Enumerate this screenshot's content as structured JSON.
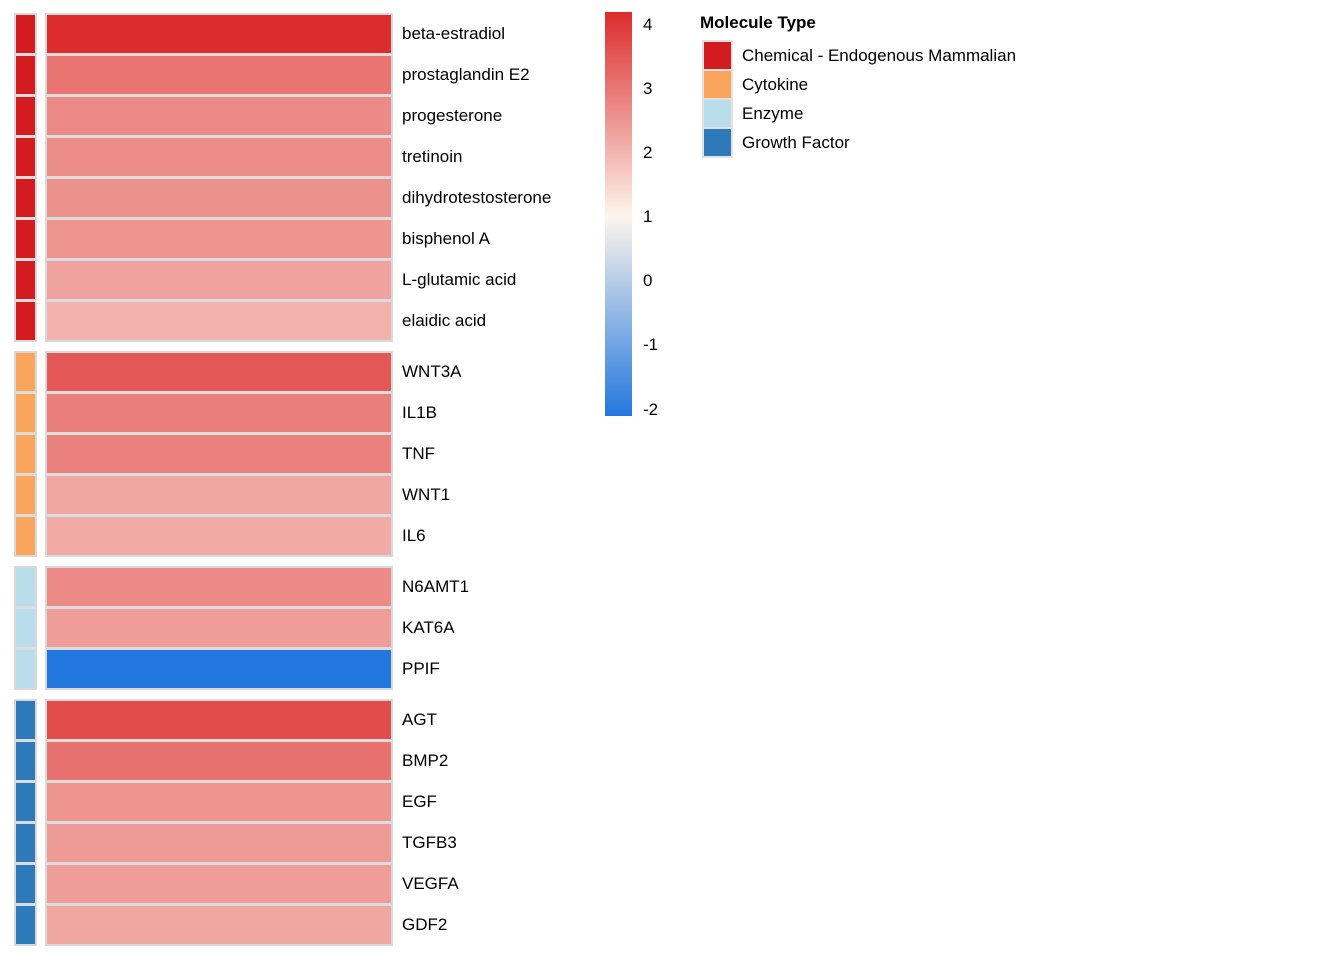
{
  "chart_data": {
    "type": "heatmap",
    "legend_title": "Molecule Type",
    "legend_position": "top-right",
    "grid": false,
    "colorbar": {
      "tick_labels": [
        "4",
        "3",
        "2",
        "1",
        "0",
        "-1",
        "-2"
      ],
      "tick_values": [
        4,
        3,
        2,
        1,
        0,
        -1,
        -2
      ],
      "domain_max": 4.2,
      "white_at": 1,
      "domain_min": -2.1,
      "color_max": "#DC2C2C",
      "color_mid": "#FDF5EC",
      "color_min": "#2277DE"
    },
    "type_colors": {
      "chemical": "#D21C20",
      "cytokine": "#F9A65C",
      "enzyme": "#BADDEB",
      "growth_factor": "#2E7AB8"
    },
    "groups": [
      {
        "type": "Chemical - Endogenous Mammalian",
        "color": "#D21C20",
        "molecules": [
          {
            "name": "beta-estradiol",
            "value": 4.2
          },
          {
            "name": "prostaglandin E2",
            "value": 3.05
          },
          {
            "name": "progesterone",
            "value": 2.7
          },
          {
            "name": "tretinoin",
            "value": 2.65
          },
          {
            "name": "dihydrotestosterone",
            "value": 2.6
          },
          {
            "name": "bisphenol A",
            "value": 2.55
          },
          {
            "name": "L-glutamic acid",
            "value": 2.3
          },
          {
            "name": "elaidic acid",
            "value": 2.05
          }
        ]
      },
      {
        "type": "Cytokine",
        "color": "#F9A65C",
        "molecules": [
          {
            "name": "WNT3A",
            "value": 3.5
          },
          {
            "name": "IL1B",
            "value": 2.9
          },
          {
            "name": "TNF",
            "value": 2.85
          },
          {
            "name": "WNT1",
            "value": 2.25
          },
          {
            "name": "IL6",
            "value": 2.2
          }
        ]
      },
      {
        "type": "Enzyme",
        "color": "#BADDEB",
        "molecules": [
          {
            "name": "N6AMT1",
            "value": 2.7
          },
          {
            "name": "KAT6A",
            "value": 2.4
          },
          {
            "name": "PPIF",
            "value": -2.1
          }
        ]
      },
      {
        "type": "Growth Factor",
        "color": "#2E7AB8",
        "molecules": [
          {
            "name": "AGT",
            "value": 3.7
          },
          {
            "name": "BMP2",
            "value": 3.1
          },
          {
            "name": "EGF",
            "value": 2.55
          },
          {
            "name": "TGFB3",
            "value": 2.45
          },
          {
            "name": "VEGFA",
            "value": 2.4
          },
          {
            "name": "GDF2",
            "value": 2.25
          }
        ]
      }
    ]
  }
}
